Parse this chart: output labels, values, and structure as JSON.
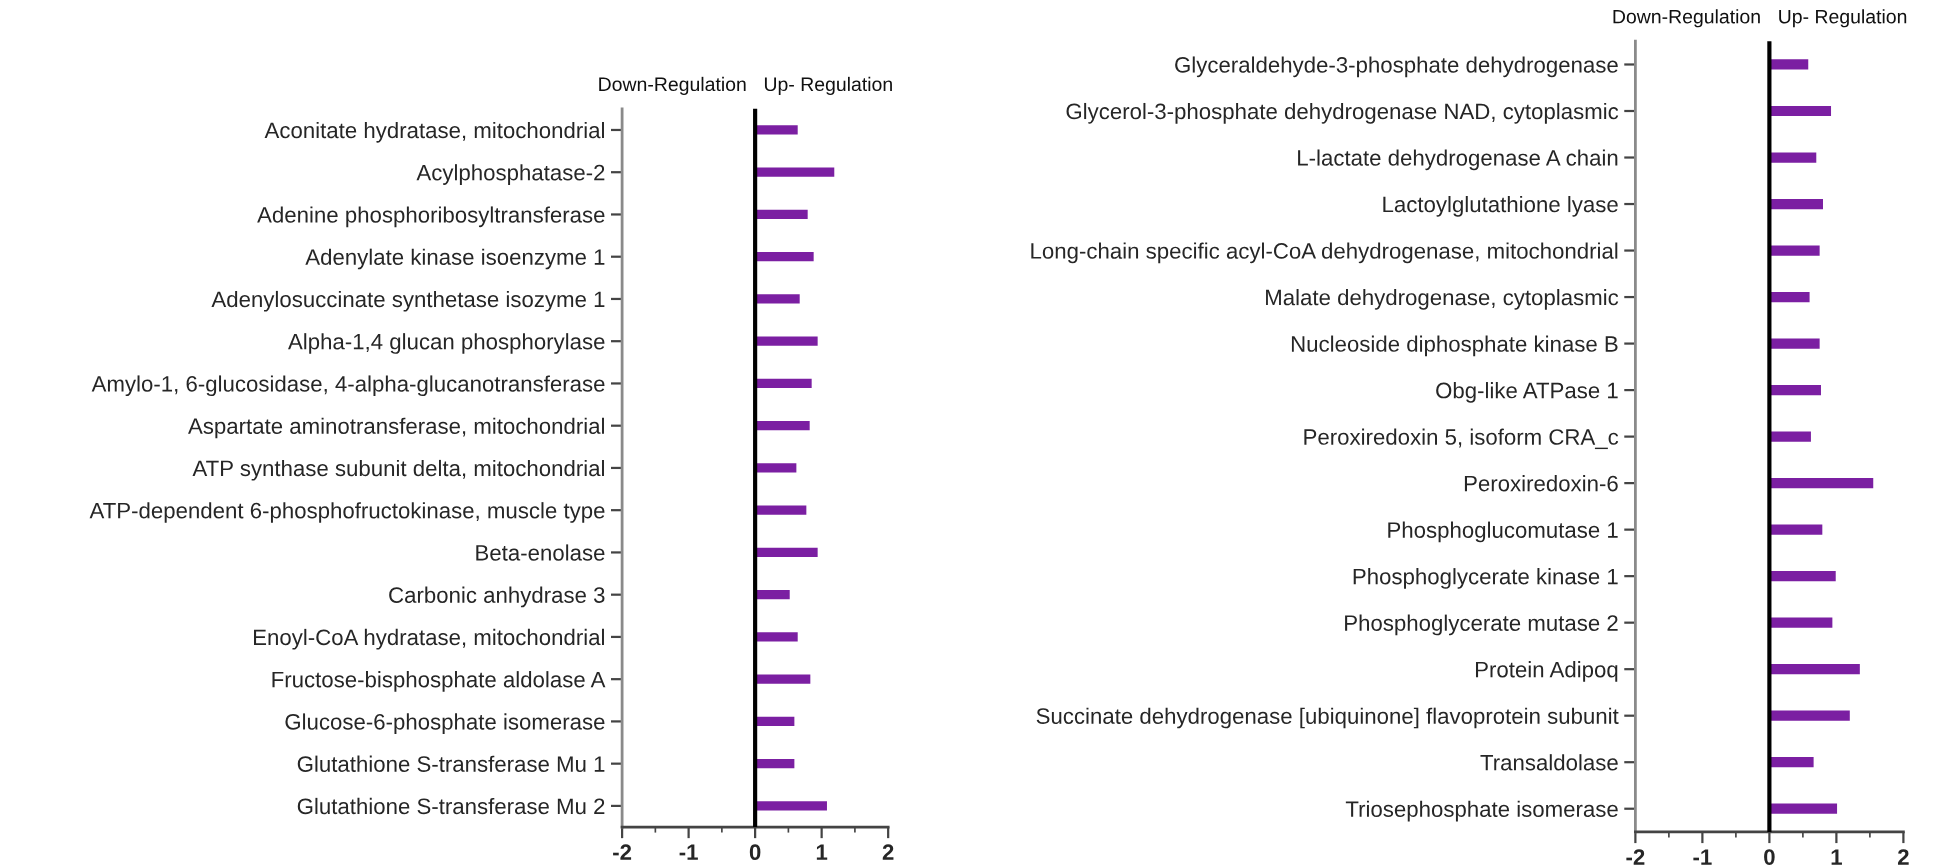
{
  "chart_data": [
    {
      "type": "bar",
      "orientation": "horizontal",
      "categories": [
        "Aconitate hydratase, mitochondrial",
        "Acylphosphatase-2",
        "Adenine phosphoribosyltransferase",
        "Adenylate kinase isoenzyme 1",
        "Adenylosuccinate synthetase isozyme 1",
        "Alpha-1,4 glucan phosphorylase",
        "Amylo-1, 6-glucosidase, 4-alpha-glucanotransferase",
        "Aspartate aminotransferase, mitochondrial",
        "ATP synthase subunit delta, mitochondrial",
        "ATP-dependent 6-phosphofructokinase, muscle type",
        "Beta-enolase",
        "Carbonic anhydrase 3",
        "Enoyl-CoA hydratase, mitochondrial",
        "Fructose-bisphosphate aldolase A",
        "Glucose-6-phosphate isomerase",
        "Glutathione S-transferase Mu 1",
        "Glutathione S-transferase Mu 2"
      ],
      "values": [
        0.64,
        1.19,
        0.79,
        0.88,
        0.67,
        0.94,
        0.85,
        0.82,
        0.62,
        0.77,
        0.94,
        0.52,
        0.64,
        0.83,
        0.59,
        0.59,
        1.08
      ],
      "color": "#7b1fa2",
      "xlim": [
        -2,
        2
      ],
      "xticks": [
        -2,
        -1,
        0,
        1,
        2
      ],
      "ref_lines": [
        {
          "axis": "x",
          "value": 0,
          "color": "#000000"
        }
      ],
      "annotations": [
        "Down-Regulation",
        "Up- Regulation"
      ]
    },
    {
      "type": "bar",
      "orientation": "horizontal",
      "categories": [
        "Glyceraldehyde-3-phosphate dehydrogenase",
        "Glycerol-3-phosphate dehydrogenase NAD, cytoplasmic",
        "L-lactate dehydrogenase A chain",
        "Lactoylglutathione lyase",
        "Long-chain specific acyl-CoA dehydrogenase, mitochondrial",
        "Malate dehydrogenase, cytoplasmic",
        "Nucleoside diphosphate kinase B",
        "Obg-like ATPase 1",
        "Peroxiredoxin 5, isoform CRA_c",
        "Peroxiredoxin-6",
        "Phosphoglucomutase 1",
        "Phosphoglycerate kinase 1",
        "Phosphoglycerate mutase 2",
        "Protein Adipoq",
        "Succinate dehydrogenase [ubiquinone] flavoprotein subunit",
        "Transaldolase",
        "Triosephosphate isomerase"
      ],
      "values": [
        0.58,
        0.92,
        0.7,
        0.8,
        0.75,
        0.6,
        0.75,
        0.77,
        0.62,
        1.55,
        0.79,
        0.99,
        0.94,
        1.35,
        1.2,
        0.66,
        1.01
      ],
      "color": "#7b1fa2",
      "xlim": [
        -2,
        2
      ],
      "xticks": [
        -2,
        -1,
        0,
        1,
        2
      ],
      "ref_lines": [
        {
          "axis": "x",
          "value": 0,
          "color": "#000000"
        }
      ],
      "annotations": [
        "Down-Regulation",
        "Up- Regulation"
      ]
    }
  ]
}
